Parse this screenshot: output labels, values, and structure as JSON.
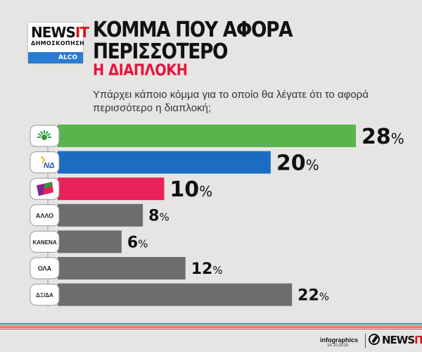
{
  "logo": {
    "news": "NEWS",
    "it": "IT",
    "sub": "ΔΗΜΟΣΚΟΠΗΣΗ",
    "alco": "ALCO"
  },
  "header": {
    "title_line1": "ΚΟΜΜΑ ΠΟΥ ΑΦΟΡΑ",
    "title_line2": "ΠΕΡΙΣΣΟΤΕΡΟ",
    "subtitle": "Η ΔΙΑΠΛΟΚΗ",
    "question": "Υπάρχει κάποιο κόμμα  για το οποίο θα λέγατε ότι το αφορά περισσότερο η διαπλοκή;"
  },
  "chart_data": {
    "type": "bar",
    "orientation": "horizontal",
    "categories": [
      "PASOK",
      "ΝΔ",
      "SYRIZA",
      "ΑΛΛΟ",
      "ΚΑΝΕΝΑ",
      "ΟΛΑ",
      "ΔΞ/ΔΑ"
    ],
    "values": [
      28,
      20,
      10,
      8,
      6,
      12,
      22
    ],
    "value_suffix": "%",
    "colors": [
      "#5ab34c",
      "#1a6dc1",
      "#e8225a",
      "#6d6d6d",
      "#6d6d6d",
      "#6d6d6d",
      "#6d6d6d"
    ],
    "row_icons": [
      "pasok-sun-icon",
      "nd-logo-icon",
      "syriza-logo-icon",
      null,
      null,
      null,
      null
    ],
    "xlim": [
      0,
      28
    ]
  },
  "footer": {
    "infographics": "infographics",
    "date": "14.10.2015",
    "brand": "NEWS",
    "brand_it": "IT"
  }
}
